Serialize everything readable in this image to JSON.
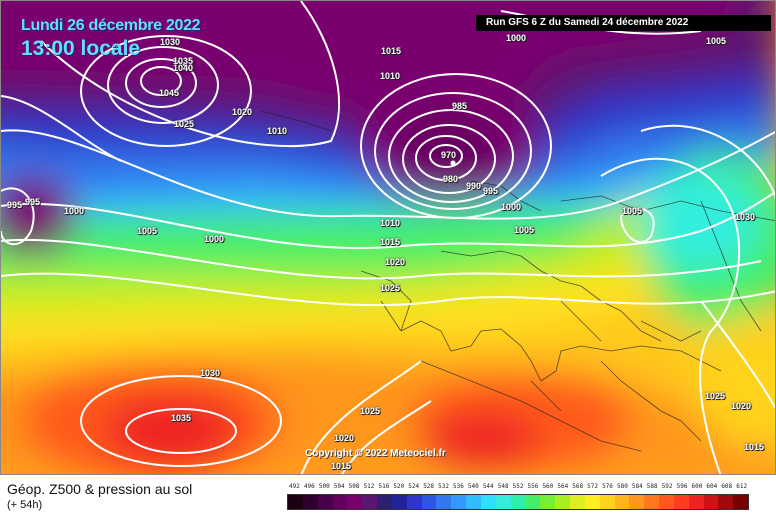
{
  "header": {
    "date": "Lundi 26 décembre 2022",
    "time": "13:00 locale",
    "run": "Run GFS 6 Z du Samedi 24 décembre 2022"
  },
  "map": {
    "copyright": "Copyright © 2022 Meteociel.fr",
    "isobar_labels": [
      "1030",
      "1035",
      "1040",
      "1045",
      "1025",
      "1020",
      "1010",
      "1015",
      "1010",
      "1000",
      "985",
      "970",
      "980",
      "990",
      "995",
      "1000",
      "1005",
      "1005",
      "1005",
      "1030",
      "995",
      "995",
      "1000",
      "1005",
      "1000",
      "1010",
      "1015",
      "1020",
      "1025",
      "1030",
      "1035",
      "1025",
      "1020",
      "1015",
      "1025",
      "1020",
      "1015"
    ]
  },
  "footer": {
    "caption": "Géop. Z500 & pression au sol",
    "forecast_offset": "(+ 54h)"
  },
  "legend": {
    "values": [
      "492",
      "496",
      "500",
      "504",
      "508",
      "512",
      "516",
      "520",
      "524",
      "528",
      "532",
      "536",
      "540",
      "544",
      "548",
      "552",
      "556",
      "560",
      "564",
      "568",
      "572",
      "576",
      "580",
      "584",
      "588",
      "592",
      "596",
      "600",
      "604",
      "608",
      "612"
    ],
    "colors": [
      "#1a0010",
      "#2e0030",
      "#48004a",
      "#660060",
      "#7a0070",
      "#5a1670",
      "#2a2070",
      "#222299",
      "#2d36c8",
      "#2f55e2",
      "#3278ee",
      "#3399ff",
      "#33bbff",
      "#33ddff",
      "#33eedd",
      "#33eeaa",
      "#44ee66",
      "#77ee33",
      "#aaee22",
      "#ddee22",
      "#ffee22",
      "#ffd21e",
      "#ffb41e",
      "#ff961e",
      "#ff781e",
      "#ff5a1e",
      "#ff3c1e",
      "#ee2222",
      "#cc1414",
      "#a00a0a",
      "#780000"
    ]
  }
}
